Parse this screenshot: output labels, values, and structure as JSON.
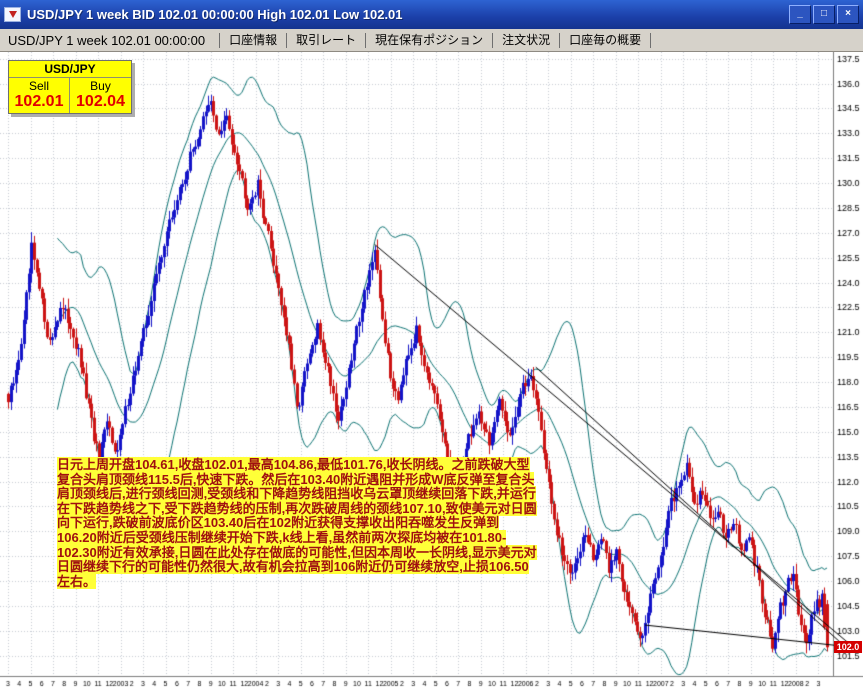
{
  "window": {
    "title": "USD/JPY 1 week BID 102.01 00:00:00 High 102.01 Low 102.01",
    "minimize_glyph": "_",
    "maximize_glyph": "□",
    "close_glyph": "×"
  },
  "toolbar": {
    "status": "USD/JPY 1 week 102.01 00:00:00",
    "tabs": [
      {
        "label": "口座情報"
      },
      {
        "label": "取引レート"
      },
      {
        "label": "現在保有ポジション"
      },
      {
        "label": "注文状況"
      },
      {
        "label": "口座毎の概要"
      }
    ]
  },
  "quote": {
    "pair": "USD/JPY",
    "sell_label": "Sell",
    "buy_label": "Buy",
    "sell_price": "102.01",
    "buy_price": "102.04"
  },
  "annotation": {
    "text": "日元上周开盘104.61,收盘102.01,最高104.86,最低101.76,收长阴线。之前跌破大型复合头肩顶颈线115.5后,快速下跌。然后在103.40附近遇阻并形成W底反弹至复合头肩顶颈线后,进行颈线回测,受颈线和下降趋势线阻挡收乌云罩顶继续回落下跌,并运行在下跌趋势线之下,受下跌趋势线的压制,再次跌破周线的颈线107.10,致使美元对日圆向下运行,跌破前波底价区103.40后在102附近获得支撑收出阳吞噬发生反弹到106.20附近后受颈线压制继续开始下跌,k线上看,虽然前两次探底均被在101.80-102.30附近有效承接,日圆在此处存在做底的可能性,但因本周收一长阴线,显示美元对日圆继续下行的可能性仍然很大,故有机会拉高到106附近仍可继续放空,止损106.50左右。"
  },
  "chart_data": {
    "type": "candlestick",
    "symbol": "USD/JPY",
    "timeframe": "1 week",
    "current_price_label": "102.0",
    "last_candle": {
      "open": 104.61,
      "high": 104.86,
      "low": 101.76,
      "close": 102.01
    },
    "weeks": 316,
    "y_axis": {
      "min": 100.4,
      "max": 137.9,
      "tick_labels": [
        "137.5",
        "136.0",
        "134.5",
        "133.0",
        "131.5",
        "130.0",
        "128.5",
        "127.0",
        "125.5",
        "124.0",
        "122.5",
        "121.0",
        "119.5",
        "118.0",
        "116.5",
        "115.0",
        "113.5",
        "112.0",
        "110.5",
        "109.0",
        "107.5",
        "106.0",
        "104.5",
        "103.0",
        "101.5"
      ]
    },
    "x_axis": {
      "labels": [
        "3",
        "4",
        "5",
        "6",
        "7",
        "8",
        "9",
        "10",
        "11",
        "12",
        "2003",
        "2",
        "3",
        "4",
        "5",
        "6",
        "7",
        "8",
        "9",
        "10",
        "11",
        "12",
        "2004",
        "2",
        "3",
        "4",
        "5",
        "6",
        "7",
        "8",
        "9",
        "10",
        "11",
        "12",
        "2005",
        "2",
        "3",
        "4",
        "5",
        "6",
        "7",
        "8",
        "9",
        "10",
        "11",
        "12",
        "2006",
        "2",
        "3",
        "4",
        "5",
        "6",
        "7",
        "8",
        "9",
        "10",
        "11",
        "12",
        "2007",
        "2",
        "3",
        "4",
        "5",
        "6",
        "7",
        "8",
        "9",
        "10",
        "11",
        "12",
        "2008",
        "2",
        "3"
      ]
    },
    "close_waypoints": [
      [
        0,
        116.8
      ],
      [
        3,
        118.5
      ],
      [
        6,
        121.5
      ],
      [
        9,
        126.0
      ],
      [
        12,
        123.5
      ],
      [
        16,
        120.3
      ],
      [
        20,
        122.5
      ],
      [
        24,
        121.5
      ],
      [
        28,
        119.0
      ],
      [
        32,
        115.5
      ],
      [
        35,
        113.2
      ],
      [
        38,
        115.5
      ],
      [
        42,
        113.8
      ],
      [
        46,
        117.0
      ],
      [
        50,
        119.5
      ],
      [
        55,
        123.0
      ],
      [
        60,
        126.5
      ],
      [
        65,
        129.0
      ],
      [
        70,
        131.5
      ],
      [
        75,
        133.8
      ],
      [
        78,
        134.8
      ],
      [
        81,
        132.8
      ],
      [
        84,
        133.9
      ],
      [
        88,
        131.5
      ],
      [
        92,
        128.8
      ],
      [
        96,
        129.8
      ],
      [
        100,
        126.8
      ],
      [
        104,
        123.8
      ],
      [
        108,
        120.0
      ],
      [
        111,
        116.3
      ],
      [
        115,
        119.0
      ],
      [
        119,
        121.2
      ],
      [
        123,
        118.8
      ],
      [
        127,
        115.8
      ],
      [
        131,
        118.5
      ],
      [
        135,
        122.0
      ],
      [
        139,
        124.8
      ],
      [
        141,
        125.6
      ],
      [
        144,
        121.8
      ],
      [
        147,
        118.2
      ],
      [
        150,
        117.2
      ],
      [
        153,
        119.6
      ],
      [
        157,
        121.0
      ],
      [
        161,
        118.8
      ],
      [
        165,
        116.3
      ],
      [
        169,
        113.4
      ],
      [
        173,
        112.0
      ],
      [
        177,
        114.6
      ],
      [
        181,
        116.2
      ],
      [
        185,
        114.4
      ],
      [
        189,
        116.6
      ],
      [
        193,
        114.9
      ],
      [
        197,
        117.2
      ],
      [
        201,
        118.6
      ],
      [
        204,
        116.2
      ],
      [
        207,
        112.8
      ],
      [
        210,
        109.5
      ],
      [
        213,
        107.6
      ],
      [
        216,
        106.4
      ],
      [
        219,
        107.8
      ],
      [
        222,
        108.8
      ],
      [
        225,
        107.4
      ],
      [
        228,
        108.6
      ],
      [
        231,
        106.8
      ],
      [
        234,
        107.8
      ],
      [
        237,
        105.6
      ],
      [
        240,
        103.8
      ],
      [
        243,
        102.5
      ],
      [
        246,
        104.4
      ],
      [
        249,
        106.4
      ],
      [
        252,
        108.4
      ],
      [
        255,
        110.6
      ],
      [
        258,
        112.0
      ],
      [
        261,
        112.8
      ],
      [
        264,
        110.8
      ],
      [
        267,
        111.4
      ],
      [
        270,
        109.6
      ],
      [
        273,
        110.4
      ],
      [
        276,
        108.8
      ],
      [
        279,
        109.6
      ],
      [
        282,
        107.8
      ],
      [
        285,
        108.4
      ],
      [
        288,
        106.6
      ],
      [
        290,
        105.0
      ],
      [
        292,
        103.4
      ],
      [
        294,
        102.1
      ],
      [
        297,
        104.3
      ],
      [
        300,
        105.8
      ],
      [
        302,
        106.2
      ],
      [
        304,
        104.4
      ],
      [
        307,
        102.3
      ],
      [
        309,
        103.8
      ],
      [
        311,
        104.6
      ],
      [
        313,
        105.0
      ],
      [
        315,
        102.0
      ]
    ],
    "trendlines": [
      [
        [
          141,
          126.3
        ],
        [
          323,
          102.3
        ]
      ],
      [
        [
          203,
          118.9
        ],
        [
          323,
          101.9
        ]
      ],
      [
        [
          245,
          103.35
        ],
        [
          323,
          102.05
        ]
      ]
    ],
    "bollinger": {
      "period": 20,
      "stdev": 2
    },
    "colors": {
      "up": "#1414c8",
      "down": "#cc1414",
      "band": "#0e7474",
      "grid": "#c6cad4",
      "axis_line": "#7b7b7b",
      "trendline": "#000000",
      "price_tag_bg": "#d40000"
    }
  }
}
